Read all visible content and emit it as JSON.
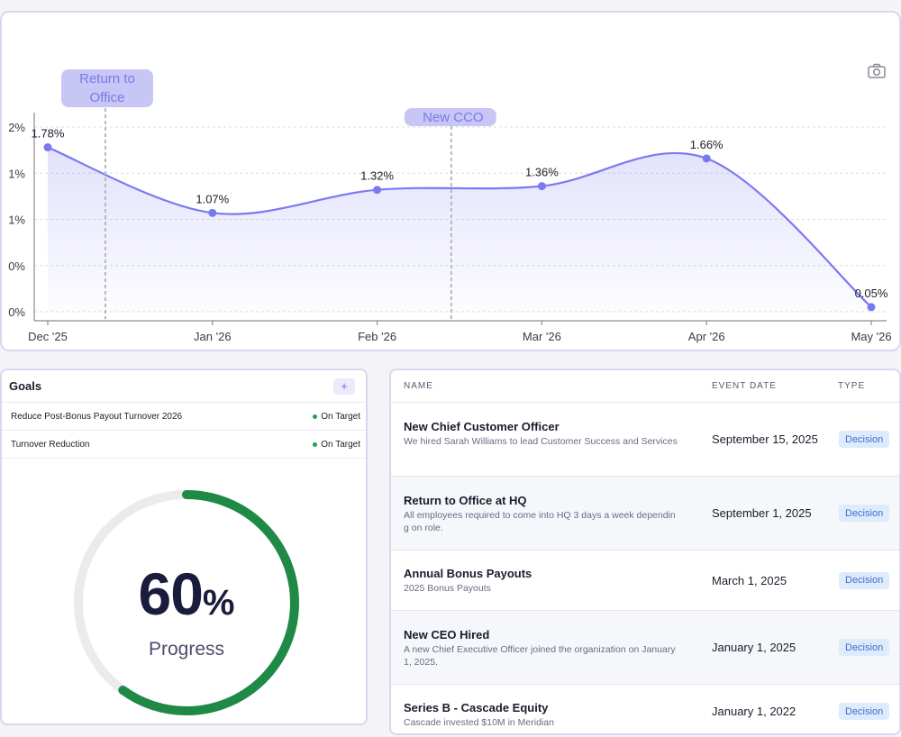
{
  "chart_data": {
    "type": "area",
    "x": [
      "Dec '25",
      "Jan '26",
      "Feb '26",
      "Mar '26",
      "Apr '26",
      "May '26"
    ],
    "values": [
      1.78,
      1.07,
      1.32,
      1.36,
      1.66,
      0.05
    ],
    "data_labels": [
      "1.78%",
      "1.07%",
      "1.32%",
      "1.36%",
      "1.66%",
      "0.05%"
    ],
    "y_ticks": [
      "2%",
      "1%",
      "1%",
      "0%",
      "0%"
    ],
    "ylim": [
      0,
      2
    ],
    "grid": true,
    "color": "#7b79f0",
    "annotations": [
      {
        "label_lines": [
          "Return to",
          "Office"
        ],
        "x_between": [
          "Dec '25",
          "Jan '26"
        ],
        "fraction": 0.35
      },
      {
        "label_lines": [
          "New CCO"
        ],
        "x_between": [
          "Feb '26",
          "Mar '26"
        ],
        "fraction": 0.45
      }
    ]
  },
  "toolbar": {
    "camera_icon": "camera-icon"
  },
  "goals": {
    "title": "Goals",
    "add_label": "+",
    "items": [
      {
        "name": "Reduce Post-Bonus Payout Turnover 2026",
        "status": "On Target",
        "status_color": "#1ea44c"
      },
      {
        "name": "Turnover Reduction",
        "status": "On Target",
        "status_color": "#1ea44c"
      }
    ],
    "progress": {
      "value": 60,
      "number": "60",
      "unit": "%",
      "label": "Progress",
      "color": "#1f8a45",
      "track_color": "#ebebee"
    }
  },
  "events": {
    "columns": {
      "name": "NAME",
      "date": "EVENT DATE",
      "type": "TYPE"
    },
    "rows": [
      {
        "title": "New Chief Customer Officer",
        "desc": "We hired Sarah Williams to lead Customer Success and Services",
        "date": "September 15, 2025",
        "type": "Decision"
      },
      {
        "title": "Return to Office at HQ",
        "desc": "All employees required to come into HQ 3 days a week depending on role.",
        "date": "September 1, 2025",
        "type": "Decision"
      },
      {
        "title": "Annual Bonus Payouts",
        "desc": "2025 Bonus Payouts",
        "date": "March 1, 2025",
        "type": "Decision"
      },
      {
        "title": "New CEO Hired",
        "desc": "A new Chief Executive Officer joined the organization on January 1, 2025.",
        "date": "January 1, 2025",
        "type": "Decision"
      },
      {
        "title": "Series B - Cascade Equity",
        "desc": "Cascade invested $10M in Meridian",
        "date": "January 1, 2022",
        "type": "Decision"
      }
    ]
  }
}
